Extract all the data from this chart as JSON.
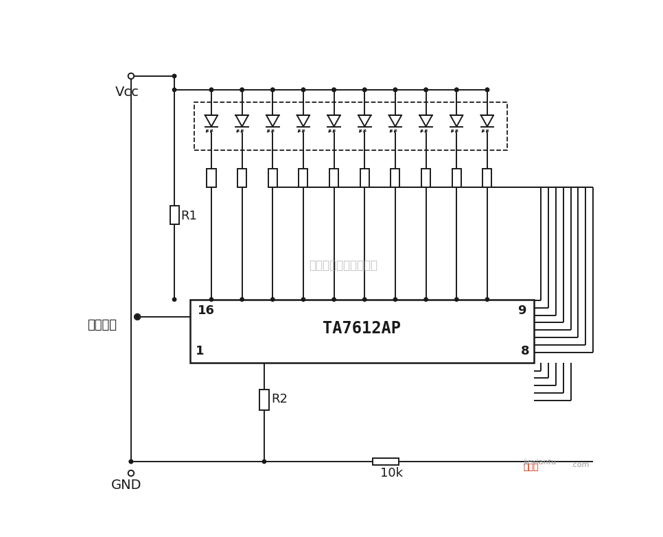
{
  "bg_color": "#ffffff",
  "line_color": "#1a1a1a",
  "vcc_label": "Vcc",
  "gnd_label": "GND",
  "analog_input_label": "模拟输入",
  "ic_label": "TA7612AP",
  "ic_pin16": "16",
  "ic_pin9": "9",
  "ic_pin1": "1",
  "ic_pin8": "8",
  "r1_label": "R1",
  "r2_label": "R2",
  "r10k_label": "10k",
  "watermark": "杭州将睹科技有限公司",
  "lw": 1.4,
  "n_leds": 10
}
